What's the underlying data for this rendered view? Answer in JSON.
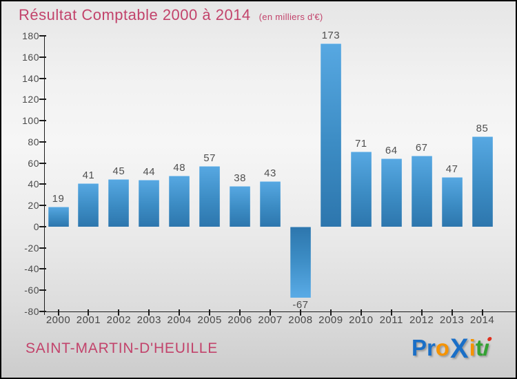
{
  "title": "Résultat Comptable 2000 à 2014",
  "subtitle": "(en milliers d'€)",
  "footer": {
    "commune": "SAINT-MARTIN-D'HEUILLE"
  },
  "logo": {
    "name": "Proxiti",
    "letters": [
      {
        "ch": "P",
        "color": "#1a6fc7"
      },
      {
        "ch": "r",
        "color": "#1a6fc7"
      },
      {
        "ch": "o",
        "color": "#f59300"
      },
      {
        "ch": "X",
        "color": "#1a6fc7",
        "style": "x"
      },
      {
        "ch": "i",
        "color": "#f59300"
      },
      {
        "ch": "t",
        "color": "#33a133"
      },
      {
        "ch": "i",
        "color": "#33a133",
        "dot_color": "#e0301e",
        "style": "slant"
      }
    ]
  },
  "chart_data": {
    "type": "bar",
    "title": "Résultat Comptable 2000 à 2014",
    "subtitle": "(en milliers d'€)",
    "categories": [
      "2000",
      "2001",
      "2002",
      "2003",
      "2004",
      "2005",
      "2006",
      "2007",
      "2008",
      "2009",
      "2010",
      "2011",
      "2012",
      "2013",
      "2014"
    ],
    "values": [
      19,
      41,
      45,
      44,
      48,
      57,
      38,
      43,
      -67,
      173,
      71,
      64,
      67,
      47,
      85
    ],
    "xlabel": "",
    "ylabel": "",
    "ylim": [
      -80,
      180
    ],
    "ytick_step": 20,
    "grid": false,
    "legend": "none",
    "bar_color_top": "#57a8e2",
    "bar_color_bottom": "#2d76ad",
    "label_color": "#4f4f4f",
    "axis_color": "#1a1a1a",
    "title_color": "#c2436b"
  }
}
